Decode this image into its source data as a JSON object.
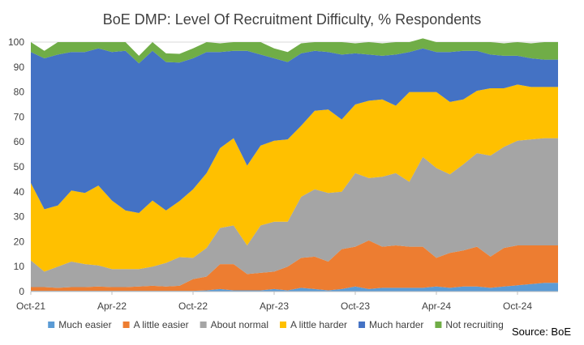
{
  "chart_data": {
    "type": "area",
    "stacked": true,
    "title": "BoE DMP: Level Of Recruitment Difficulty, % Respondents",
    "xlabel": "",
    "ylabel": "",
    "ylim": [
      0,
      100
    ],
    "yticks": [
      0,
      10,
      20,
      30,
      40,
      50,
      60,
      70,
      80,
      90,
      100
    ],
    "grid": true,
    "legend_position": "bottom",
    "x_tick_labels": [
      {
        "label": "Oct-21",
        "index": 0
      },
      {
        "label": "Apr-22",
        "index": 6
      },
      {
        "label": "Oct-22",
        "index": 12
      },
      {
        "label": "Apr-23",
        "index": 18
      },
      {
        "label": "Oct-23",
        "index": 24
      },
      {
        "label": "Apr-24",
        "index": 30
      },
      {
        "label": "Oct-24",
        "index": 36
      }
    ],
    "x_count": 40,
    "series": [
      {
        "name": "Much easier",
        "color": "#5B9BD5",
        "values": [
          0.3,
          0.3,
          0.3,
          0.3,
          0.3,
          0.3,
          0.3,
          0.3,
          0.3,
          0.3,
          0.3,
          0.3,
          0.3,
          0.5,
          1,
          0.5,
          0.5,
          0.5,
          1,
          0.5,
          1.5,
          1,
          0.5,
          1,
          2,
          1,
          1.5,
          1.5,
          1.5,
          1.5,
          2,
          1.5,
          2,
          2,
          1.5,
          2,
          2.5,
          3,
          3.5,
          3.5
        ]
      },
      {
        "name": "A little easier",
        "color": "#ED7D31",
        "values": [
          1.5,
          1.5,
          1.2,
          1.5,
          1.5,
          1.7,
          1.5,
          1.5,
          1.7,
          2,
          1.7,
          2,
          4.7,
          5.5,
          10,
          10.5,
          6.5,
          7,
          7,
          9.5,
          12,
          13,
          11.5,
          16,
          16,
          19.5,
          16.5,
          17,
          16.5,
          16.5,
          11.5,
          14,
          14.5,
          16,
          12.5,
          15.5,
          16,
          15.5,
          15,
          15
        ]
      },
      {
        "name": "About normal",
        "color": "#A5A5A5",
        "values": [
          10.7,
          6.2,
          8.5,
          10.2,
          9.2,
          8.5,
          7.2,
          7.2,
          7.0,
          7.7,
          9.5,
          11.5,
          8.5,
          11.5,
          14.5,
          15.5,
          11.5,
          19,
          20,
          18,
          24.5,
          27,
          27.5,
          23,
          29.5,
          25,
          28,
          29,
          26,
          36,
          36,
          31.5,
          34.5,
          37.5,
          40.5,
          40.5,
          42,
          42.5,
          43,
          43
        ]
      },
      {
        "name": "A little harder",
        "color": "#FFC000",
        "values": [
          31,
          25,
          24.5,
          28.5,
          28.5,
          32,
          27.5,
          23.5,
          22.5,
          26.5,
          21,
          22.5,
          27.5,
          30,
          32,
          35,
          32,
          32,
          32.5,
          33,
          28.5,
          31.5,
          33.5,
          29,
          27.5,
          31,
          31,
          27,
          36,
          26,
          30.5,
          29,
          26,
          25,
          27,
          23.5,
          22.5,
          21,
          20.5,
          20.5
        ]
      },
      {
        "name": "Much harder",
        "color": "#4472C4",
        "values": [
          52.5,
          60.5,
          60.5,
          55.5,
          56.5,
          55,
          59.5,
          64,
          60,
          60,
          59.5,
          55.5,
          52.5,
          48.5,
          38.5,
          35,
          46,
          36.5,
          33,
          31,
          29,
          24,
          23,
          26,
          20.5,
          18.5,
          17.5,
          20.5,
          16,
          17.5,
          16,
          20,
          19.5,
          16,
          13.5,
          13,
          11.5,
          11.5,
          11,
          11
        ]
      },
      {
        "name": "Not recruiting",
        "color": "#70AD47",
        "values": [
          4,
          3,
          5,
          4,
          4,
          2.5,
          4,
          3.5,
          3,
          3.5,
          3.5,
          3.5,
          4,
          4,
          3.5,
          3.5,
          3.5,
          5,
          4,
          4,
          4,
          3.5,
          4,
          5,
          4,
          5,
          5,
          5,
          4,
          4,
          4,
          4,
          3.5,
          3.5,
          5,
          5,
          5.5,
          6,
          7,
          7
        ]
      }
    ]
  },
  "source": "Source: BoE"
}
